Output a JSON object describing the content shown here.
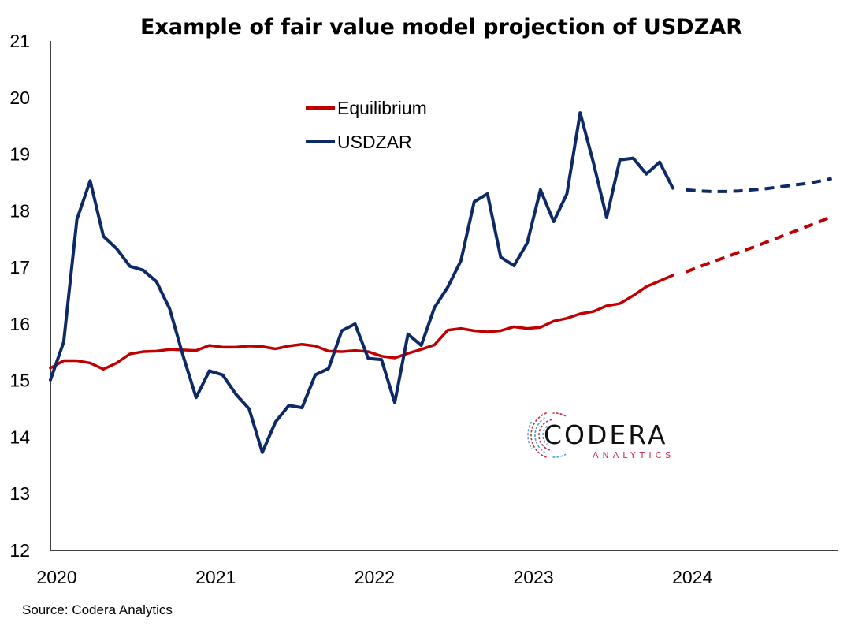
{
  "chart_data": {
    "type": "line",
    "title": "Example of fair value model projection of USDZAR",
    "xlabel": "",
    "ylabel": "",
    "ylim": [
      12,
      21
    ],
    "yticks": [
      12,
      13,
      14,
      15,
      16,
      17,
      18,
      19,
      20,
      21
    ],
    "xlim": [
      2020.0,
      2024.9583
    ],
    "xticks": [
      {
        "value": 2020,
        "label": "2020"
      },
      {
        "value": 2021,
        "label": "2021"
      },
      {
        "value": 2022,
        "label": "2022"
      },
      {
        "value": 2023,
        "label": "2023"
      },
      {
        "value": 2024,
        "label": "2024"
      }
    ],
    "grid": false,
    "legend_position": "top-center",
    "source": "Source: Codera Analytics",
    "logo": {
      "main": "CODERA",
      "sub": "ANALYTICS"
    },
    "series": [
      {
        "name": "Equilibrium",
        "color": "#c00000",
        "start": "2020-01",
        "step": "month",
        "values": [
          15.22,
          15.35,
          15.35,
          15.31,
          15.2,
          15.31,
          15.47,
          15.51,
          15.52,
          15.55,
          15.54,
          15.53,
          15.62,
          15.59,
          15.59,
          15.61,
          15.6,
          15.56,
          15.61,
          15.64,
          15.61,
          15.52,
          15.51,
          15.53,
          15.51,
          15.43,
          15.4,
          15.48,
          15.55,
          15.63,
          15.89,
          15.92,
          15.88,
          15.86,
          15.88,
          15.95,
          15.92,
          15.94,
          16.05,
          16.1,
          16.18,
          16.22,
          16.32,
          16.36,
          16.5,
          16.66,
          16.76,
          16.86
        ],
        "projection": {
          "start": "2024-01",
          "values": [
            16.92,
            17.01,
            17.1,
            17.18,
            17.27,
            17.35,
            17.44,
            17.53,
            17.62,
            17.71,
            17.8,
            17.9
          ]
        }
      },
      {
        "name": "USDZAR",
        "color": "#0d2a66",
        "start": "2020-01",
        "step": "month",
        "values": [
          15.01,
          15.68,
          17.85,
          18.53,
          17.55,
          17.33,
          17.02,
          16.95,
          16.75,
          16.27,
          15.45,
          14.7,
          15.17,
          15.1,
          14.76,
          14.5,
          13.73,
          14.27,
          14.56,
          14.52,
          15.1,
          15.21,
          15.88,
          16.0,
          15.39,
          15.37,
          14.61,
          15.82,
          15.62,
          16.29,
          16.65,
          17.12,
          18.16,
          18.3,
          17.18,
          17.03,
          17.43,
          18.37,
          17.81,
          18.3,
          19.73,
          18.85,
          17.88,
          18.9,
          18.93,
          18.65,
          18.86,
          18.4
        ],
        "projection": {
          "start": "2024-01",
          "values": [
            18.37,
            18.35,
            18.34,
            18.34,
            18.35,
            18.37,
            18.39,
            18.42,
            18.45,
            18.48,
            18.52,
            18.57
          ]
        }
      }
    ]
  }
}
